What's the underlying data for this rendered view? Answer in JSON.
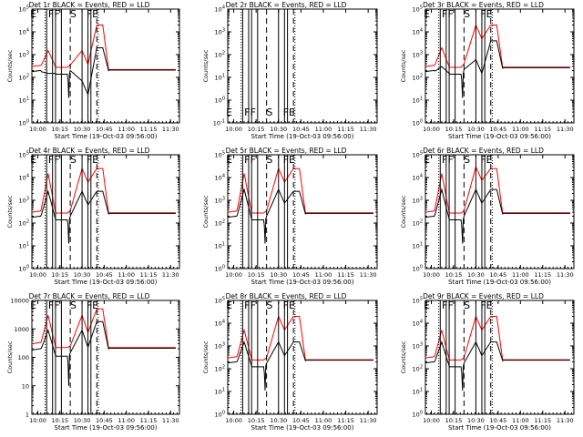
{
  "chart_data": [
    {
      "type": "line",
      "title": "Det 1r  BLACK = Events, RED = LLD",
      "xlabel": "Start Time (19-Oct-03 09:56:00)",
      "ylabel": "Counts/sec",
      "xticks": [
        "10:00",
        "10:15",
        "10:30",
        "10:45",
        "11:00",
        "11:15",
        "11:30"
      ],
      "yticks": [
        "10^0",
        "10^1",
        "10^2",
        "10^3",
        "10^4",
        "10^5"
      ],
      "ylim": [
        1,
        100000
      ],
      "xlim_min": [
        0,
        100
      ],
      "has_data": true,
      "flags": [
        "E",
        "F",
        "F",
        "S",
        "F",
        "E"
      ],
      "series": [
        {
          "name": "Events",
          "color": "#000000",
          "peaks": [
            150,
            70,
            2000
          ]
        },
        {
          "name": "LLD",
          "color": "#ff0000",
          "peaks": [
            1500,
            1500,
            20000
          ]
        }
      ],
      "baseline": [
        250,
        250,
        220
      ]
    },
    {
      "type": "line",
      "title": "Det 2r  BLACK = Events, RED = LLD",
      "xlabel": "Start Time (19-Oct-03 09:56:00)",
      "ylabel": "Counts/sec",
      "xticks": [
        "10:00",
        "10:15",
        "10:30",
        "10:45",
        "11:00",
        "11:15",
        "11:30"
      ],
      "yticks": [
        "10^-1",
        "10^0",
        "10^1",
        "10^2",
        "10^3",
        "10^4"
      ],
      "ylim": [
        0.1,
        10000
      ],
      "xlim_min": [
        0,
        100
      ],
      "has_data": false,
      "flags": [
        "E",
        "F",
        "F",
        "S",
        "F",
        "E"
      ],
      "series": [
        {
          "name": "Events",
          "color": "#000000",
          "peaks": []
        },
        {
          "name": "LLD",
          "color": "#ff0000",
          "peaks": []
        }
      ],
      "baseline": []
    },
    {
      "type": "line",
      "title": "Det 3r  BLACK = Events, RED = LLD",
      "xlabel": "Start Time (19-Oct-03 09:56:00)",
      "ylabel": "Counts/sec",
      "xticks": [
        "10:00",
        "10:15",
        "10:30",
        "10:45",
        "11:00",
        "11:15",
        "11:30"
      ],
      "yticks": [
        "10^0",
        "10^1",
        "10^2",
        "10^3",
        "10^4",
        "10^5"
      ],
      "ylim": [
        1,
        100000
      ],
      "xlim_min": [
        0,
        100
      ],
      "has_data": true,
      "flags": [
        "E",
        "F",
        "F",
        "S",
        "F",
        "E"
      ],
      "series": [
        {
          "name": "Events",
          "color": "#000000",
          "peaks": [
            300,
            600,
            4000
          ]
        },
        {
          "name": "LLD",
          "color": "#ff0000",
          "peaks": [
            2000,
            20000,
            20000
          ]
        }
      ],
      "baseline": [
        250,
        280,
        280
      ]
    },
    {
      "type": "line",
      "title": "Det 4r  BLACK = Events, RED = LLD",
      "xlabel": "Start Time (19-Oct-03 09:56:00)",
      "ylabel": "Counts/sec",
      "xticks": [
        "10:00",
        "10:15",
        "10:30",
        "10:45",
        "11:00",
        "11:15",
        "11:30"
      ],
      "yticks": [
        "10^0",
        "10^1",
        "10^2",
        "10^3",
        "10^4",
        "10^5"
      ],
      "ylim": [
        1,
        100000
      ],
      "xlim_min": [
        0,
        100
      ],
      "has_data": true,
      "flags": [
        "E",
        "F",
        "F",
        "S",
        "F",
        "E"
      ],
      "series": [
        {
          "name": "Events",
          "color": "#000000",
          "peaks": [
            2500,
            2500,
            2500
          ]
        },
        {
          "name": "LLD",
          "color": "#ff0000",
          "peaks": [
            15000,
            25000,
            25000
          ]
        }
      ],
      "baseline": [
        250,
        250,
        280
      ]
    },
    {
      "type": "line",
      "title": "Det 5r  BLACK = Events, RED = LLD",
      "xlabel": "Start Time (19-Oct-03 09:56:00)",
      "ylabel": "Counts/sec",
      "xticks": [
        "10:00",
        "10:15",
        "10:30",
        "10:45",
        "11:00",
        "11:15",
        "11:30"
      ],
      "yticks": [
        "10^0",
        "10^1",
        "10^2",
        "10^3",
        "10^4",
        "10^5"
      ],
      "ylim": [
        1,
        100000
      ],
      "xlim_min": [
        0,
        100
      ],
      "has_data": true,
      "flags": [
        "E",
        "F",
        "F",
        "S",
        "F",
        "E"
      ],
      "series": [
        {
          "name": "Events",
          "color": "#000000",
          "peaks": [
            3000,
            3000,
            2500
          ]
        },
        {
          "name": "LLD",
          "color": "#ff0000",
          "peaks": [
            15000,
            25000,
            25000
          ]
        }
      ],
      "baseline": [
        250,
        250,
        280
      ]
    },
    {
      "type": "line",
      "title": "Det 6r  BLACK = Events, RED = LLD",
      "xlabel": "Start Time (19-Oct-03 09:56:00)",
      "ylabel": "Counts/sec",
      "xticks": [
        "10:00",
        "10:15",
        "10:30",
        "10:45",
        "11:00",
        "11:15",
        "11:30"
      ],
      "yticks": [
        "10^0",
        "10^1",
        "10^2",
        "10^3",
        "10^4",
        "10^5"
      ],
      "ylim": [
        1,
        100000
      ],
      "xlim_min": [
        0,
        100
      ],
      "has_data": true,
      "flags": [
        "E",
        "F",
        "F",
        "S",
        "F",
        "E"
      ],
      "series": [
        {
          "name": "Events",
          "color": "#000000",
          "peaks": [
            3000,
            3000,
            3000
          ]
        },
        {
          "name": "LLD",
          "color": "#ff0000",
          "peaks": [
            15000,
            30000,
            25000
          ]
        }
      ],
      "baseline": [
        250,
        250,
        280
      ]
    },
    {
      "type": "line",
      "title": "Det 7r  BLACK = Events, RED = LLD",
      "xlabel": "Start Time (19-Oct-03 09:56:00)",
      "ylabel": "Counts/sec",
      "xticks": [
        "10:00",
        "10:15",
        "10:30",
        "10:45",
        "11:00",
        "11:15",
        "11:30"
      ],
      "yticks": [
        "1",
        "10",
        "100",
        "1000",
        "10000"
      ],
      "ylim": [
        1,
        10000
      ],
      "xlim_min": [
        0,
        100
      ],
      "has_data": true,
      "flags": [
        "E",
        "F",
        "F",
        "S",
        "F",
        "E"
      ],
      "series": [
        {
          "name": "Events",
          "color": "#000000",
          "peaks": [
            900,
            900,
            1800
          ]
        },
        {
          "name": "LLD",
          "color": "#ff0000",
          "peaks": [
            3000,
            3000,
            5000
          ]
        }
      ],
      "baseline": [
        200,
        180,
        220
      ]
    },
    {
      "type": "line",
      "title": "Det 8r  BLACK = Events, RED = LLD",
      "xlabel": "Start Time (19-Oct-03 09:56:00)",
      "ylabel": "Counts/sec",
      "xticks": [
        "10:00",
        "10:15",
        "10:30",
        "10:45",
        "11:00",
        "11:15",
        "11:30"
      ],
      "yticks": [
        "10^0",
        "10^1",
        "10^2",
        "10^3",
        "10^4",
        "10^5"
      ],
      "ylim": [
        1,
        100000
      ],
      "xlim_min": [
        0,
        100
      ],
      "has_data": true,
      "flags": [
        "E",
        "F",
        "F",
        "S",
        "F",
        "E"
      ],
      "series": [
        {
          "name": "Events",
          "color": "#000000",
          "peaks": [
            1500,
            1500,
            1500
          ]
        },
        {
          "name": "LLD",
          "color": "#ff0000",
          "peaks": [
            5000,
            20000,
            20000
          ]
        }
      ],
      "baseline": [
        220,
        220,
        250
      ]
    },
    {
      "type": "line",
      "title": "Det 9r  BLACK = Events, RED = LLD",
      "xlabel": "Start Time (19-Oct-03 09:56:00)",
      "ylabel": "Counts/sec",
      "xticks": [
        "10:00",
        "10:15",
        "10:30",
        "10:45",
        "11:00",
        "11:15",
        "11:30"
      ],
      "yticks": [
        "10^0",
        "10^1",
        "10^2",
        "10^3",
        "10^4",
        "10^5"
      ],
      "ylim": [
        1,
        100000
      ],
      "xlim_min": [
        0,
        100
      ],
      "has_data": true,
      "flags": [
        "E",
        "F",
        "F",
        "S",
        "F",
        "E"
      ],
      "series": [
        {
          "name": "Events",
          "color": "#000000",
          "peaks": [
            1500,
            1500,
            1500
          ]
        },
        {
          "name": "LLD",
          "color": "#ff0000",
          "peaks": [
            5000,
            20000,
            20000
          ]
        }
      ],
      "baseline": [
        220,
        220,
        250
      ]
    }
  ],
  "markers_min": {
    "solid": [
      10,
      14,
      16,
      20,
      34,
      38,
      40
    ],
    "dashed": [
      26,
      44
    ],
    "dotted": [
      9,
      45
    ]
  }
}
